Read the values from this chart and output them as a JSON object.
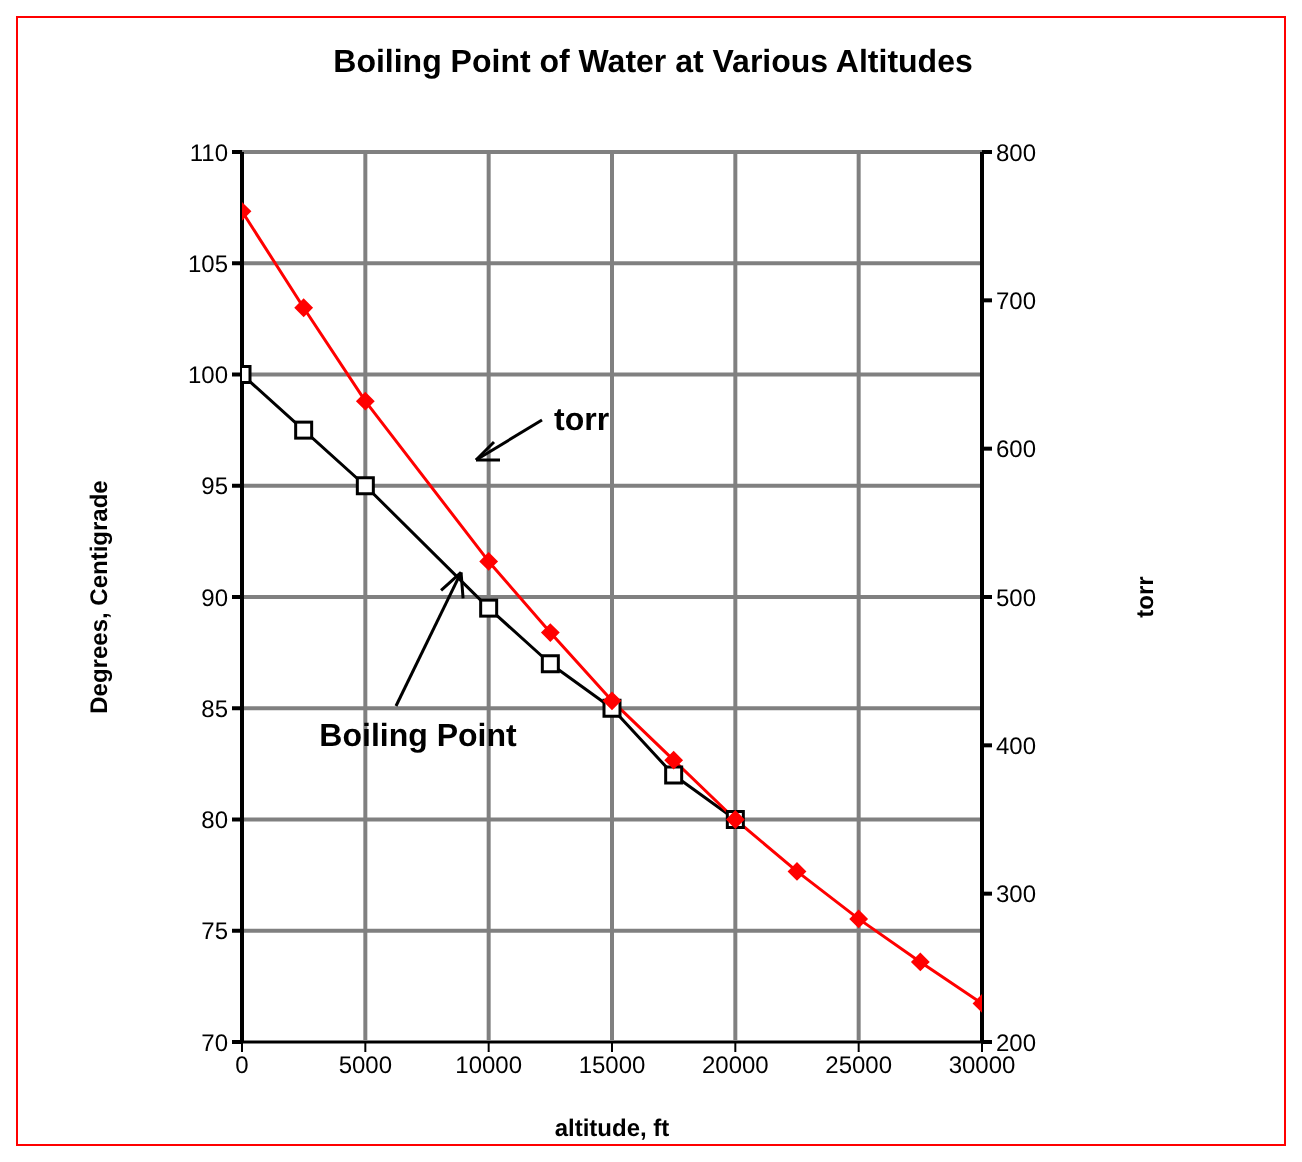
{
  "chart_data": {
    "type": "line",
    "title": "Boiling Point of Water at Various Altitudes",
    "xlabel": "altitude, ft",
    "ylabel": "Degrees, Centigrade",
    "y2label": "torr",
    "xlim": [
      0,
      30000
    ],
    "xticks": [
      0,
      5000,
      10000,
      15000,
      20000,
      25000,
      30000
    ],
    "ylim": [
      70,
      110
    ],
    "yticks": [
      70,
      75,
      80,
      85,
      90,
      95,
      100,
      105,
      110
    ],
    "y2lim": [
      200,
      800
    ],
    "y2ticks": [
      200,
      300,
      400,
      500,
      600,
      700,
      800
    ],
    "grid": true,
    "line_style": "solid",
    "annotations": [
      "torr",
      {
        "text": "Boiling Point",
        "x": 8800,
        "y": 91.2
      }
    ],
    "series": [
      {
        "color": "#000000",
        "marker": "square",
        "x": [
          0,
          2500,
          5000,
          10000,
          12500,
          15000,
          17500,
          20000
        ],
        "values": [
          100,
          97.5,
          95,
          89.5,
          87,
          85,
          82,
          80
        ]
      },
      {
        "color": "#ff0000",
        "marker": "diamond",
        "axis": "y2",
        "x": [
          0,
          2500,
          5000,
          10000,
          12500,
          15000,
          17500,
          20000,
          22500,
          25000,
          27500,
          30000
        ],
        "values": [
          760,
          695,
          632,
          524,
          476,
          430,
          390,
          350,
          315,
          283,
          254,
          226
        ]
      }
    ]
  }
}
